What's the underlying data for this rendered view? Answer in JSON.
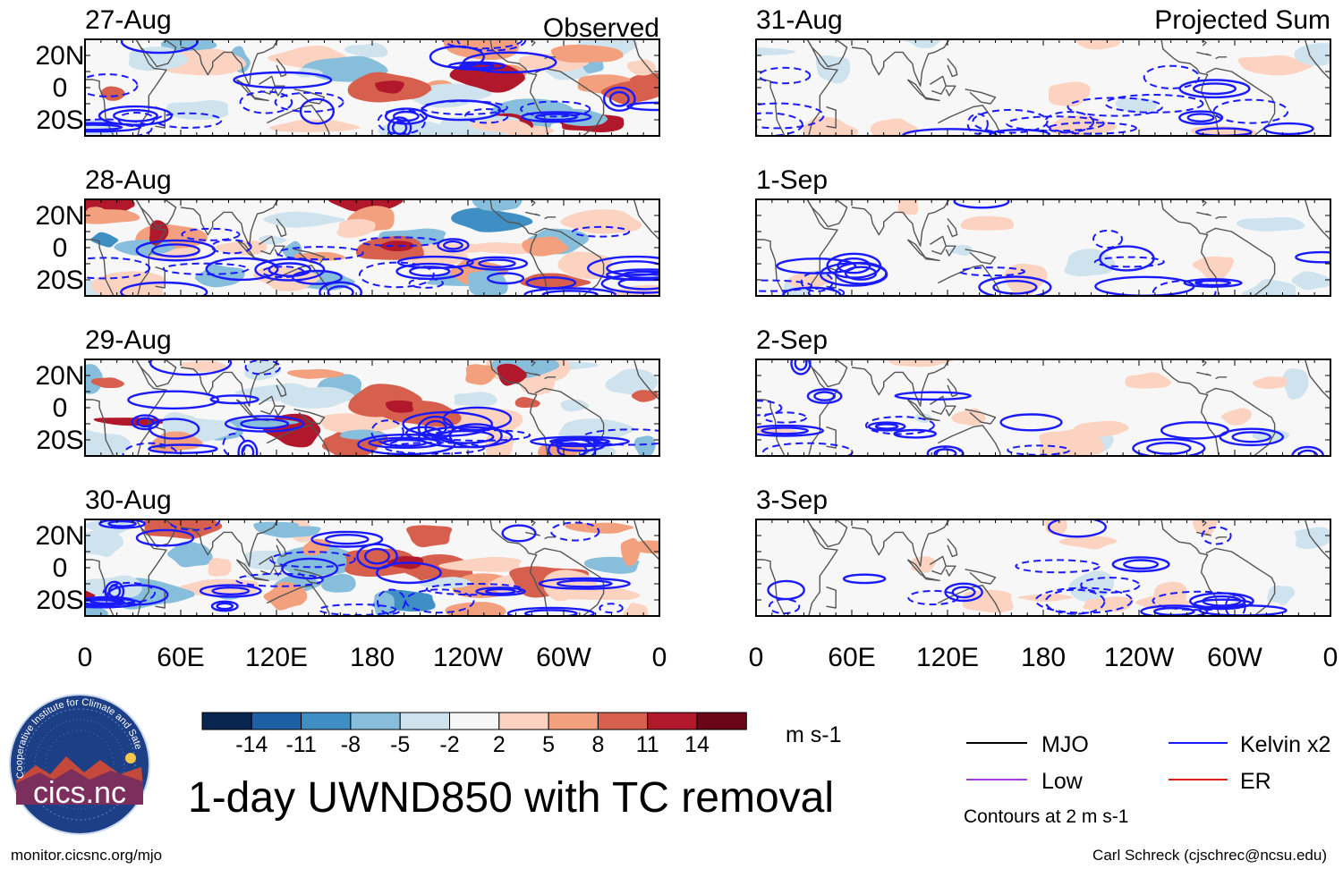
{
  "chart_data": {
    "type": "heatmap",
    "title": "1-day UWND850 with TC removal",
    "units": "m s-1",
    "column_labels": [
      "Observed",
      "Projected Sum"
    ],
    "x_ticks": [
      "0",
      "60E",
      "120E",
      "180",
      "120W",
      "60W",
      "0"
    ],
    "y_ticks": [
      "20N",
      "0",
      "20S"
    ],
    "x_range_deg": [
      0,
      360
    ],
    "y_range_deg": [
      -30,
      30
    ],
    "panels": [
      {
        "date": "27-Aug",
        "column": "Observed"
      },
      {
        "date": "28-Aug",
        "column": "Observed"
      },
      {
        "date": "29-Aug",
        "column": "Observed"
      },
      {
        "date": "30-Aug",
        "column": "Observed"
      },
      {
        "date": "31-Aug",
        "column": "Projected Sum"
      },
      {
        "date": "1-Sep",
        "column": "Projected Sum"
      },
      {
        "date": "2-Sep",
        "column": "Projected Sum"
      },
      {
        "date": "3-Sep",
        "column": "Projected Sum"
      }
    ],
    "colorbar": {
      "labels": [
        "-14",
        "-11",
        "-8",
        "-5",
        "-2",
        "2",
        "5",
        "8",
        "11",
        "14"
      ],
      "colors": [
        "#08254f",
        "#1d5fa3",
        "#3f8fc4",
        "#86bedb",
        "#cfe3ef",
        "#f7f7f7",
        "#fbd3c0",
        "#f2a07e",
        "#d6604d",
        "#b2182b",
        "#6b0618"
      ]
    },
    "legend": [
      {
        "label": "MJO",
        "color": "#000000"
      },
      {
        "label": "Kelvin x2",
        "color": "#1a1aff"
      },
      {
        "label": "Low",
        "color": "#a040e0"
      },
      {
        "label": "ER",
        "color": "#e0201a"
      }
    ],
    "contour_note": "Contours at 2 m s-1"
  },
  "logo": {
    "text": "cics.nc",
    "ring_text": "Cooperative Institute for Climate and Satellites"
  },
  "footer": {
    "url": "monitor.cicsnc.org/mjo",
    "credit": "Carl Schreck (cjschrec@ncsu.edu)"
  }
}
